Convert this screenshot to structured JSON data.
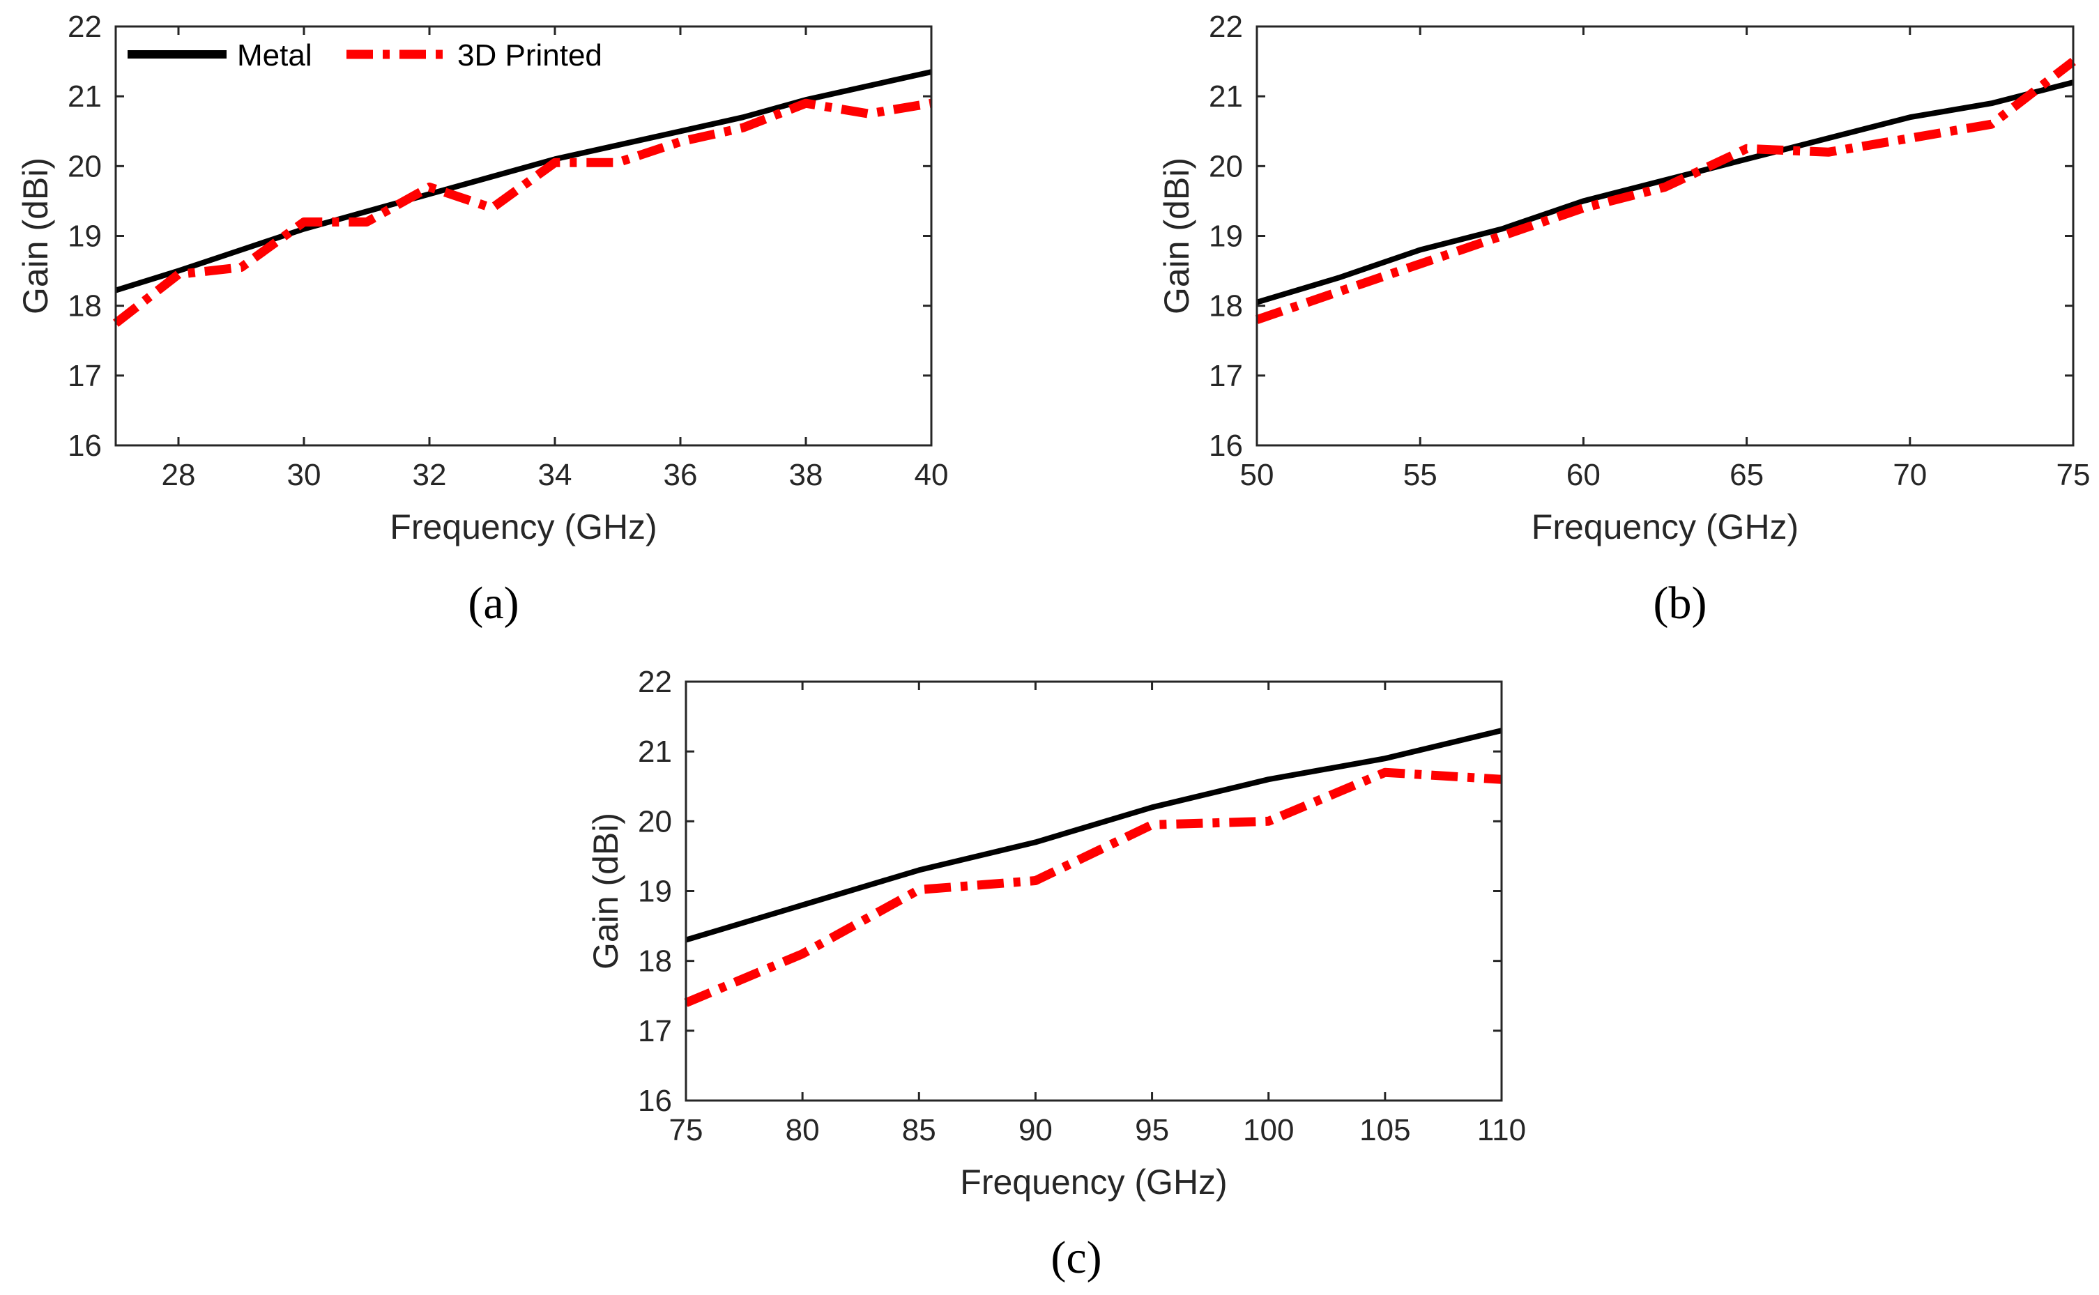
{
  "figure": {
    "panel_labels": [
      "(a)",
      "(b)",
      "(c)"
    ]
  },
  "legend": {
    "entries": [
      "Metal",
      "3D Printed"
    ]
  },
  "colors": {
    "metal": "#000000",
    "printed": "#ff0000",
    "axis": "#262626"
  },
  "chart_data": [
    {
      "type": "line",
      "panel": "(a)",
      "xlabel": "Frequency (GHz)",
      "ylabel": "Gain (dBi)",
      "xlim": [
        27,
        40
      ],
      "ylim": [
        16,
        22
      ],
      "xticks": [
        28,
        30,
        32,
        34,
        36,
        38,
        40
      ],
      "yticks": [
        16,
        17,
        18,
        19,
        20,
        21,
        22
      ],
      "legend_location": "top-left",
      "series": [
        {
          "name": "Metal",
          "x": [
            27,
            28,
            29,
            30,
            31,
            32,
            33,
            34,
            35,
            36,
            37,
            38,
            39,
            40
          ],
          "values": [
            18.22,
            18.5,
            18.8,
            19.1,
            19.35,
            19.6,
            19.85,
            20.1,
            20.3,
            20.5,
            20.7,
            20.95,
            21.15,
            21.35
          ]
        },
        {
          "name": "3D Printed",
          "x": [
            27,
            28,
            29,
            30,
            31,
            32,
            33,
            34,
            35,
            36,
            37,
            38,
            39,
            40
          ],
          "values": [
            17.75,
            18.45,
            18.55,
            19.2,
            19.2,
            19.7,
            19.4,
            20.05,
            20.05,
            20.35,
            20.55,
            20.9,
            20.75,
            20.9
          ]
        }
      ]
    },
    {
      "type": "line",
      "panel": "(b)",
      "xlabel": "Frequency (GHz)",
      "ylabel": "Gain (dBi)",
      "xlim": [
        50,
        75
      ],
      "ylim": [
        16,
        22
      ],
      "xticks": [
        50,
        55,
        60,
        65,
        70,
        75
      ],
      "yticks": [
        16,
        17,
        18,
        19,
        20,
        21,
        22
      ],
      "series": [
        {
          "name": "Metal",
          "x": [
            50,
            52.5,
            55,
            57.5,
            60,
            62.5,
            65,
            67.5,
            70,
            72.5,
            75
          ],
          "values": [
            18.05,
            18.4,
            18.8,
            19.1,
            19.5,
            19.8,
            20.1,
            20.4,
            20.7,
            20.9,
            21.2
          ]
        },
        {
          "name": "3D Printed",
          "x": [
            50,
            52.5,
            55,
            57.5,
            60,
            62.5,
            65,
            67.5,
            70,
            72.5,
            75
          ],
          "values": [
            17.8,
            18.2,
            18.6,
            19.0,
            19.4,
            19.7,
            20.25,
            20.2,
            20.4,
            20.6,
            21.5
          ]
        }
      ]
    },
    {
      "type": "line",
      "panel": "(c)",
      "xlabel": "Frequency (GHz)",
      "ylabel": "Gain (dBi)",
      "xlim": [
        75,
        110
      ],
      "ylim": [
        16,
        22
      ],
      "xticks": [
        75,
        80,
        85,
        90,
        95,
        100,
        105,
        110
      ],
      "yticks": [
        16,
        17,
        18,
        19,
        20,
        21,
        22
      ],
      "series": [
        {
          "name": "Metal",
          "x": [
            75,
            80,
            85,
            90,
            95,
            100,
            105,
            110
          ],
          "values": [
            18.3,
            18.8,
            19.3,
            19.7,
            20.2,
            20.6,
            20.9,
            21.3
          ]
        },
        {
          "name": "3D Printed",
          "x": [
            75,
            80,
            85,
            90,
            95,
            100,
            105,
            110
          ],
          "values": [
            17.4,
            18.1,
            19.02,
            19.15,
            19.95,
            20.0,
            20.7,
            20.6
          ]
        }
      ]
    }
  ]
}
